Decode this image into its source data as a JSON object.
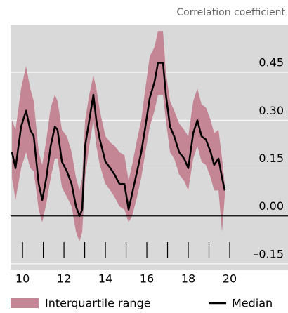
{
  "chart_data": {
    "type": "band-line",
    "y_axis_label": "Correlation coefficient",
    "x": [
      9.49,
      9.66,
      9.93,
      10.17,
      10.37,
      10.54,
      10.78,
      10.95,
      11.15,
      11.36,
      11.56,
      11.69,
      11.9,
      12.14,
      12.37,
      12.58,
      12.75,
      12.88,
      13.02,
      13.22,
      13.42,
      13.56,
      13.73,
      14.0,
      14.24,
      14.44,
      14.68,
      14.92,
      15.12,
      15.29,
      15.53,
      15.73,
      15.93,
      16.14,
      16.37,
      16.54,
      16.78,
      16.92,
      17.12,
      17.32,
      17.56,
      17.8,
      18.0,
      18.24,
      18.44,
      18.64,
      18.85,
      19.08,
      19.25,
      19.46,
      19.63,
      19.76
    ],
    "series": [
      {
        "name": "Interquartile range",
        "color": "#c48595",
        "upper": [
          0.3,
          0.27,
          0.4,
          0.47,
          0.4,
          0.36,
          0.2,
          0.16,
          0.24,
          0.34,
          0.38,
          0.36,
          0.27,
          0.25,
          0.2,
          0.12,
          0.08,
          0.12,
          0.3,
          0.38,
          0.44,
          0.4,
          0.33,
          0.25,
          0.23,
          0.22,
          0.2,
          0.19,
          0.11,
          0.16,
          0.24,
          0.3,
          0.4,
          0.5,
          0.53,
          0.58,
          0.58,
          0.45,
          0.36,
          0.33,
          0.29,
          0.27,
          0.25,
          0.36,
          0.4,
          0.35,
          0.34,
          0.3,
          0.26,
          0.27,
          0.18,
          0.1
        ],
        "lower": [
          0.12,
          0.05,
          0.15,
          0.2,
          0.15,
          0.14,
          0.02,
          -0.02,
          0.04,
          0.12,
          0.18,
          0.18,
          0.09,
          0.06,
          0.03,
          -0.05,
          -0.08,
          -0.05,
          0.12,
          0.22,
          0.3,
          0.22,
          0.16,
          0.1,
          0.08,
          0.06,
          0.03,
          0.02,
          -0.02,
          0,
          0.06,
          0.12,
          0.2,
          0.28,
          0.33,
          0.38,
          0.38,
          0.3,
          0.2,
          0.18,
          0.13,
          0.11,
          0.08,
          0.18,
          0.22,
          0.17,
          0.16,
          0.12,
          0.08,
          0.08,
          -0.05,
          0.06
        ]
      },
      {
        "name": "Median",
        "color": "#000000",
        "values": [
          0.2,
          0.15,
          0.28,
          0.33,
          0.27,
          0.25,
          0.1,
          0.05,
          0.12,
          0.22,
          0.28,
          0.27,
          0.17,
          0.14,
          0.1,
          0.03,
          0,
          0.02,
          0.22,
          0.3,
          0.38,
          0.3,
          0.24,
          0.17,
          0.15,
          0.13,
          0.1,
          0.1,
          0.02,
          0.07,
          0.14,
          0.2,
          0.28,
          0.37,
          0.42,
          0.48,
          0.48,
          0.38,
          0.28,
          0.25,
          0.2,
          0.18,
          0.15,
          0.26,
          0.3,
          0.25,
          0.24,
          0.2,
          0.16,
          0.18,
          0.12,
          0.08
        ]
      }
    ],
    "xlim": [
      9.42,
      20.95
    ],
    "xticks": [
      10,
      12,
      14,
      16,
      18,
      20
    ],
    "xminor": [
      11,
      13,
      15,
      17,
      19
    ],
    "ylim": [
      -0.17,
      0.6
    ],
    "yticks": [
      {
        "value": -0.15,
        "label": "–0.15"
      },
      {
        "value": 0,
        "label": "0.00"
      },
      0.15,
      {
        "value": 0.3,
        "label": "0.30"
      },
      0.45
    ],
    "zero_line": true,
    "grid": true,
    "legend": "bottom"
  }
}
